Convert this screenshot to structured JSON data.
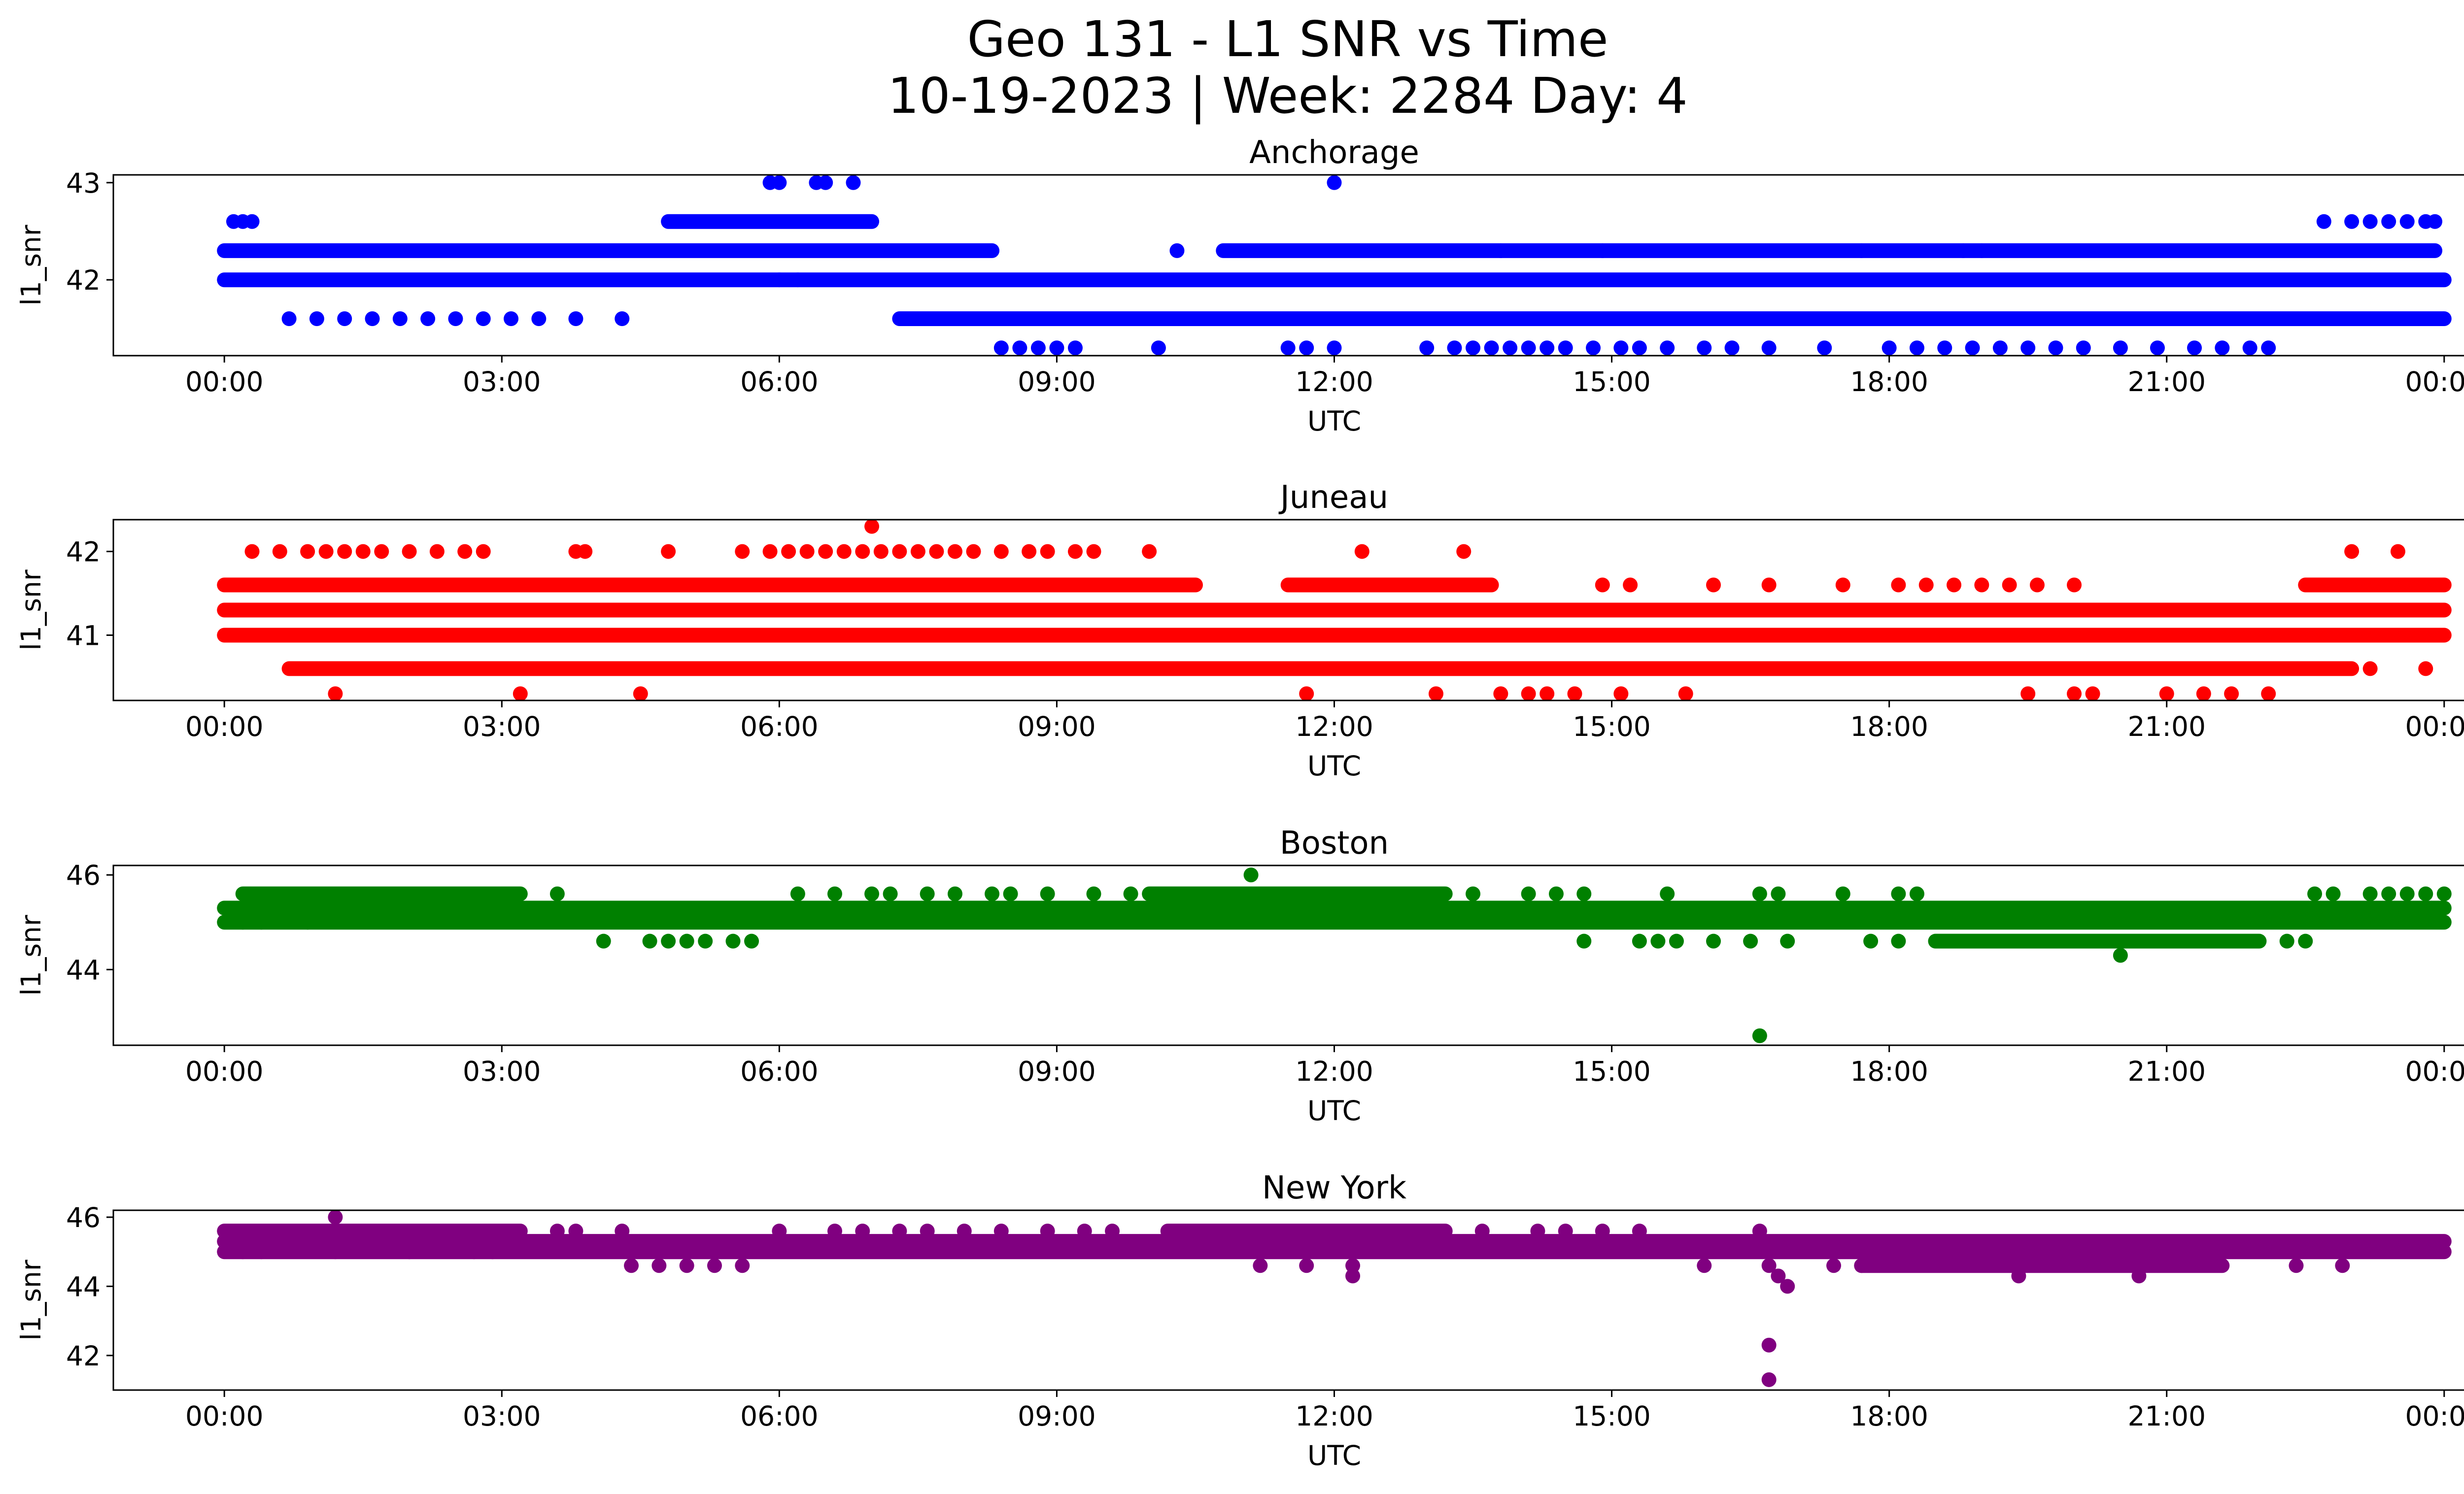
{
  "figure": {
    "title_line1": "Geo 131 - L1 SNR vs Time",
    "title_line2": "10-19-2023 | Week: 2284 Day: 4"
  },
  "chart_data": [
    {
      "type": "scatter",
      "title": "Anchorage",
      "xlabel": "UTC",
      "ylabel": "l1_snr",
      "color": "#0000ff",
      "x_tick_labels": [
        "00:00",
        "03:00",
        "06:00",
        "09:00",
        "12:00",
        "15:00",
        "18:00",
        "21:00",
        "00:00"
      ],
      "x_ticks_hours": [
        0,
        3,
        6,
        9,
        12,
        15,
        18,
        21,
        24
      ],
      "xlim_hours": [
        -1.2,
        25.2
      ],
      "y_ticks": [
        42,
        43
      ],
      "ylim": [
        41.22,
        43.08
      ],
      "levels": [
        41.3,
        41.6,
        42.0,
        42.3,
        42.6,
        43.0
      ],
      "level_ranges": [
        {
          "y": 42.0,
          "from": 0.0,
          "to": 24.0
        },
        {
          "y": 42.3,
          "from": 0.0,
          "to": 8.3
        },
        {
          "y": 41.6,
          "from": 7.3,
          "to": 24.0
        },
        {
          "y": 42.3,
          "from": 10.8,
          "to": 23.9
        },
        {
          "y": 42.6,
          "from": 4.8,
          "to": 7.0
        }
      ],
      "points": [
        [
          0.1,
          42.6
        ],
        [
          0.2,
          42.6
        ],
        [
          0.3,
          42.6
        ],
        [
          0.7,
          41.6
        ],
        [
          1.0,
          41.6
        ],
        [
          1.3,
          41.6
        ],
        [
          1.6,
          41.6
        ],
        [
          1.9,
          41.6
        ],
        [
          2.2,
          41.6
        ],
        [
          2.5,
          41.6
        ],
        [
          2.8,
          41.6
        ],
        [
          3.1,
          41.6
        ],
        [
          3.4,
          41.6
        ],
        [
          3.8,
          41.6
        ],
        [
          4.3,
          41.6
        ],
        [
          5.9,
          43.0
        ],
        [
          6.0,
          43.0
        ],
        [
          6.4,
          43.0
        ],
        [
          6.5,
          43.0
        ],
        [
          6.8,
          43.0
        ],
        [
          12.0,
          43.0
        ],
        [
          6.0,
          42.0
        ],
        [
          6.2,
          42.0
        ],
        [
          8.4,
          41.3
        ],
        [
          8.6,
          41.3
        ],
        [
          8.8,
          41.3
        ],
        [
          9.0,
          41.3
        ],
        [
          9.2,
          41.3
        ],
        [
          10.1,
          41.3
        ],
        [
          11.5,
          41.3
        ],
        [
          11.7,
          41.3
        ],
        [
          12.0,
          41.3
        ],
        [
          13.0,
          41.3
        ],
        [
          13.3,
          41.3
        ],
        [
          13.5,
          41.3
        ],
        [
          13.7,
          41.3
        ],
        [
          13.9,
          41.3
        ],
        [
          14.1,
          41.3
        ],
        [
          14.3,
          41.3
        ],
        [
          14.5,
          41.3
        ],
        [
          14.8,
          41.3
        ],
        [
          15.1,
          41.3
        ],
        [
          15.3,
          41.3
        ],
        [
          15.6,
          41.3
        ],
        [
          16.0,
          41.3
        ],
        [
          16.3,
          41.3
        ],
        [
          16.7,
          41.3
        ],
        [
          17.3,
          41.3
        ],
        [
          18.0,
          41.3
        ],
        [
          18.3,
          41.3
        ],
        [
          18.6,
          41.3
        ],
        [
          18.9,
          41.3
        ],
        [
          19.2,
          41.3
        ],
        [
          19.5,
          41.3
        ],
        [
          19.8,
          41.3
        ],
        [
          20.1,
          41.3
        ],
        [
          20.5,
          41.3
        ],
        [
          20.9,
          41.3
        ],
        [
          21.3,
          41.3
        ],
        [
          21.6,
          41.3
        ],
        [
          21.9,
          41.3
        ],
        [
          22.1,
          41.3
        ],
        [
          10.3,
          42.3
        ],
        [
          13.8,
          42.3
        ],
        [
          14.9,
          42.3
        ],
        [
          17.7,
          42.3
        ],
        [
          18.8,
          42.3
        ],
        [
          19.0,
          42.3
        ],
        [
          22.7,
          42.6
        ],
        [
          23.0,
          42.6
        ],
        [
          23.2,
          42.6
        ],
        [
          23.4,
          42.6
        ],
        [
          23.6,
          42.6
        ],
        [
          23.8,
          42.6
        ],
        [
          23.9,
          42.6
        ],
        [
          23.0,
          41.6
        ],
        [
          23.3,
          41.6
        ]
      ]
    },
    {
      "type": "scatter",
      "title": "Juneau",
      "xlabel": "UTC",
      "ylabel": "l1_snr",
      "color": "#ff0000",
      "x_tick_labels": [
        "00:00",
        "03:00",
        "06:00",
        "09:00",
        "12:00",
        "15:00",
        "18:00",
        "21:00",
        "00:00"
      ],
      "x_ticks_hours": [
        0,
        3,
        6,
        9,
        12,
        15,
        18,
        21,
        24
      ],
      "xlim_hours": [
        -1.2,
        25.2
      ],
      "y_ticks": [
        41,
        42
      ],
      "ylim": [
        40.22,
        42.38
      ],
      "levels": [
        40.3,
        40.6,
        41.0,
        41.3,
        41.6,
        42.0,
        42.3
      ],
      "level_ranges": [
        {
          "y": 41.3,
          "from": 0.0,
          "to": 24.0
        },
        {
          "y": 41.0,
          "from": 0.0,
          "to": 24.0
        },
        {
          "y": 41.6,
          "from": 0.0,
          "to": 10.5
        },
        {
          "y": 41.6,
          "from": 11.5,
          "to": 13.7
        },
        {
          "y": 40.6,
          "from": 0.7,
          "to": 23.0
        },
        {
          "y": 41.6,
          "from": 22.5,
          "to": 24.0
        }
      ],
      "points": [
        [
          0.3,
          42.0
        ],
        [
          0.6,
          42.0
        ],
        [
          0.9,
          42.0
        ],
        [
          1.1,
          42.0
        ],
        [
          1.3,
          42.0
        ],
        [
          1.5,
          42.0
        ],
        [
          1.7,
          42.0
        ],
        [
          2.0,
          42.0
        ],
        [
          2.3,
          42.0
        ],
        [
          2.6,
          42.0
        ],
        [
          2.8,
          42.0
        ],
        [
          3.8,
          42.0
        ],
        [
          3.9,
          42.0
        ],
        [
          4.8,
          42.0
        ],
        [
          5.6,
          42.0
        ],
        [
          5.9,
          42.0
        ],
        [
          6.1,
          42.0
        ],
        [
          6.3,
          42.0
        ],
        [
          6.5,
          42.0
        ],
        [
          6.7,
          42.0
        ],
        [
          6.9,
          42.0
        ],
        [
          7.1,
          42.0
        ],
        [
          7.3,
          42.0
        ],
        [
          7.5,
          42.0
        ],
        [
          7.7,
          42.0
        ],
        [
          7.9,
          42.0
        ],
        [
          8.1,
          42.0
        ],
        [
          8.4,
          42.0
        ],
        [
          8.7,
          42.0
        ],
        [
          8.9,
          42.0
        ],
        [
          9.2,
          42.0
        ],
        [
          9.4,
          42.0
        ],
        [
          10.0,
          42.0
        ],
        [
          12.3,
          42.0
        ],
        [
          13.4,
          42.0
        ],
        [
          7.0,
          42.3
        ],
        [
          1.2,
          40.3
        ],
        [
          3.2,
          40.3
        ],
        [
          4.5,
          40.3
        ],
        [
          11.7,
          40.3
        ],
        [
          13.1,
          40.3
        ],
        [
          13.8,
          40.3
        ],
        [
          14.1,
          40.3
        ],
        [
          14.3,
          40.3
        ],
        [
          14.6,
          40.3
        ],
        [
          15.1,
          40.3
        ],
        [
          15.8,
          40.3
        ],
        [
          19.5,
          40.3
        ],
        [
          20.0,
          40.3
        ],
        [
          20.2,
          40.3
        ],
        [
          21.0,
          40.3
        ],
        [
          21.4,
          40.3
        ],
        [
          21.7,
          40.3
        ],
        [
          22.1,
          40.3
        ],
        [
          14.9,
          41.6
        ],
        [
          15.2,
          41.6
        ],
        [
          16.1,
          41.6
        ],
        [
          16.7,
          41.6
        ],
        [
          17.5,
          41.6
        ],
        [
          18.1,
          41.6
        ],
        [
          18.4,
          41.6
        ],
        [
          18.7,
          41.6
        ],
        [
          19.0,
          41.6
        ],
        [
          19.3,
          41.6
        ],
        [
          19.6,
          41.6
        ],
        [
          20.0,
          41.6
        ],
        [
          23.0,
          42.0
        ],
        [
          23.5,
          42.0
        ],
        [
          23.2,
          40.6
        ],
        [
          23.8,
          40.6
        ]
      ]
    },
    {
      "type": "scatter",
      "title": "Boston",
      "xlabel": "UTC",
      "ylabel": "l1_snr",
      "color": "#008000",
      "x_tick_labels": [
        "00:00",
        "03:00",
        "06:00",
        "09:00",
        "12:00",
        "15:00",
        "18:00",
        "21:00",
        "00:00"
      ],
      "x_ticks_hours": [
        0,
        3,
        6,
        9,
        12,
        15,
        18,
        21,
        24
      ],
      "xlim_hours": [
        -1.2,
        25.2
      ],
      "y_ticks": [
        44,
        46
      ],
      "ylim": [
        42.4,
        46.2
      ],
      "levels": [
        42.6,
        44.3,
        44.6,
        45.0,
        45.3,
        45.6,
        46.0
      ],
      "level_ranges": [
        {
          "y": 45.0,
          "from": 0.0,
          "to": 24.0
        },
        {
          "y": 45.3,
          "from": 0.0,
          "to": 24.0
        },
        {
          "y": 45.6,
          "from": 0.2,
          "to": 3.2
        },
        {
          "y": 45.6,
          "from": 10.0,
          "to": 13.2
        },
        {
          "y": 44.6,
          "from": 18.5,
          "to": 22.0
        }
      ],
      "points": [
        [
          3.6,
          45.6
        ],
        [
          6.2,
          45.6
        ],
        [
          6.6,
          45.6
        ],
        [
          7.0,
          45.6
        ],
        [
          7.2,
          45.6
        ],
        [
          7.6,
          45.6
        ],
        [
          7.9,
          45.6
        ],
        [
          8.3,
          45.6
        ],
        [
          8.5,
          45.6
        ],
        [
          8.9,
          45.6
        ],
        [
          9.4,
          45.6
        ],
        [
          9.8,
          45.6
        ],
        [
          13.5,
          45.6
        ],
        [
          14.1,
          45.6
        ],
        [
          14.4,
          45.6
        ],
        [
          14.7,
          45.6
        ],
        [
          15.6,
          45.6
        ],
        [
          16.6,
          45.6
        ],
        [
          16.8,
          45.6
        ],
        [
          17.5,
          45.6
        ],
        [
          18.1,
          45.6
        ],
        [
          18.3,
          45.6
        ],
        [
          0.2,
          45.0
        ],
        [
          0.4,
          45.0
        ],
        [
          0.9,
          45.0
        ],
        [
          11.1,
          46.0
        ],
        [
          16.6,
          42.6
        ],
        [
          4.1,
          44.6
        ],
        [
          4.6,
          44.6
        ],
        [
          4.8,
          44.6
        ],
        [
          5.0,
          44.6
        ],
        [
          5.2,
          44.6
        ],
        [
          5.5,
          44.6
        ],
        [
          5.7,
          44.6
        ],
        [
          14.7,
          44.6
        ],
        [
          15.3,
          44.6
        ],
        [
          15.5,
          44.6
        ],
        [
          15.7,
          44.6
        ],
        [
          16.1,
          44.6
        ],
        [
          16.5,
          44.6
        ],
        [
          16.9,
          44.6
        ],
        [
          17.8,
          44.6
        ],
        [
          18.1,
          44.6
        ],
        [
          20.5,
          44.3
        ],
        [
          22.3,
          44.6
        ],
        [
          22.5,
          44.6
        ],
        [
          22.6,
          45.6
        ],
        [
          22.8,
          45.6
        ],
        [
          23.2,
          45.6
        ],
        [
          23.4,
          45.6
        ],
        [
          23.6,
          45.6
        ],
        [
          23.8,
          45.6
        ],
        [
          24.0,
          45.6
        ]
      ]
    },
    {
      "type": "scatter",
      "title": "New York",
      "xlabel": "UTC",
      "ylabel": "l1_snr",
      "color": "#800080",
      "x_tick_labels": [
        "00:00",
        "03:00",
        "06:00",
        "09:00",
        "12:00",
        "15:00",
        "18:00",
        "21:00",
        "00:00"
      ],
      "x_ticks_hours": [
        0,
        3,
        6,
        9,
        12,
        15,
        18,
        21,
        24
      ],
      "xlim_hours": [
        -1.2,
        25.2
      ],
      "y_ticks": [
        42,
        44,
        46
      ],
      "ylim": [
        41.0,
        46.2
      ],
      "levels": [
        41.3,
        42.3,
        44.0,
        44.3,
        44.6,
        45.0,
        45.3,
        45.6,
        46.0
      ],
      "level_ranges": [
        {
          "y": 45.0,
          "from": 0.0,
          "to": 24.0
        },
        {
          "y": 45.3,
          "from": 0.0,
          "to": 24.0
        },
        {
          "y": 45.6,
          "from": 0.0,
          "to": 3.2
        },
        {
          "y": 45.6,
          "from": 10.2,
          "to": 13.2
        },
        {
          "y": 44.6,
          "from": 17.7,
          "to": 21.6
        }
      ],
      "points": [
        [
          1.2,
          46.0
        ],
        [
          0.2,
          45.0
        ],
        [
          0.4,
          45.0
        ],
        [
          1.2,
          45.0
        ],
        [
          2.0,
          45.0
        ],
        [
          2.7,
          45.0
        ],
        [
          2.9,
          45.0
        ],
        [
          3.6,
          45.6
        ],
        [
          3.8,
          45.6
        ],
        [
          4.3,
          45.6
        ],
        [
          6.0,
          45.6
        ],
        [
          6.6,
          45.6
        ],
        [
          6.9,
          45.6
        ],
        [
          7.3,
          45.6
        ],
        [
          7.6,
          45.6
        ],
        [
          8.0,
          45.6
        ],
        [
          8.4,
          45.6
        ],
        [
          8.9,
          45.6
        ],
        [
          9.3,
          45.6
        ],
        [
          9.6,
          45.6
        ],
        [
          13.6,
          45.6
        ],
        [
          14.2,
          45.6
        ],
        [
          14.5,
          45.6
        ],
        [
          14.9,
          45.6
        ],
        [
          15.3,
          45.6
        ],
        [
          16.6,
          45.6
        ],
        [
          4.4,
          44.6
        ],
        [
          4.7,
          44.6
        ],
        [
          5.0,
          44.6
        ],
        [
          5.3,
          44.6
        ],
        [
          5.6,
          44.6
        ],
        [
          11.2,
          44.6
        ],
        [
          11.7,
          44.6
        ],
        [
          12.2,
          44.6
        ],
        [
          12.2,
          44.3
        ],
        [
          16.0,
          44.6
        ],
        [
          16.7,
          44.6
        ],
        [
          16.8,
          44.3
        ],
        [
          16.9,
          44.0
        ],
        [
          17.4,
          44.6
        ],
        [
          17.7,
          44.6
        ],
        [
          19.4,
          44.3
        ],
        [
          20.7,
          44.3
        ],
        [
          22.4,
          44.6
        ],
        [
          22.9,
          44.6
        ],
        [
          16.7,
          42.3
        ],
        [
          16.7,
          41.3
        ]
      ]
    }
  ]
}
